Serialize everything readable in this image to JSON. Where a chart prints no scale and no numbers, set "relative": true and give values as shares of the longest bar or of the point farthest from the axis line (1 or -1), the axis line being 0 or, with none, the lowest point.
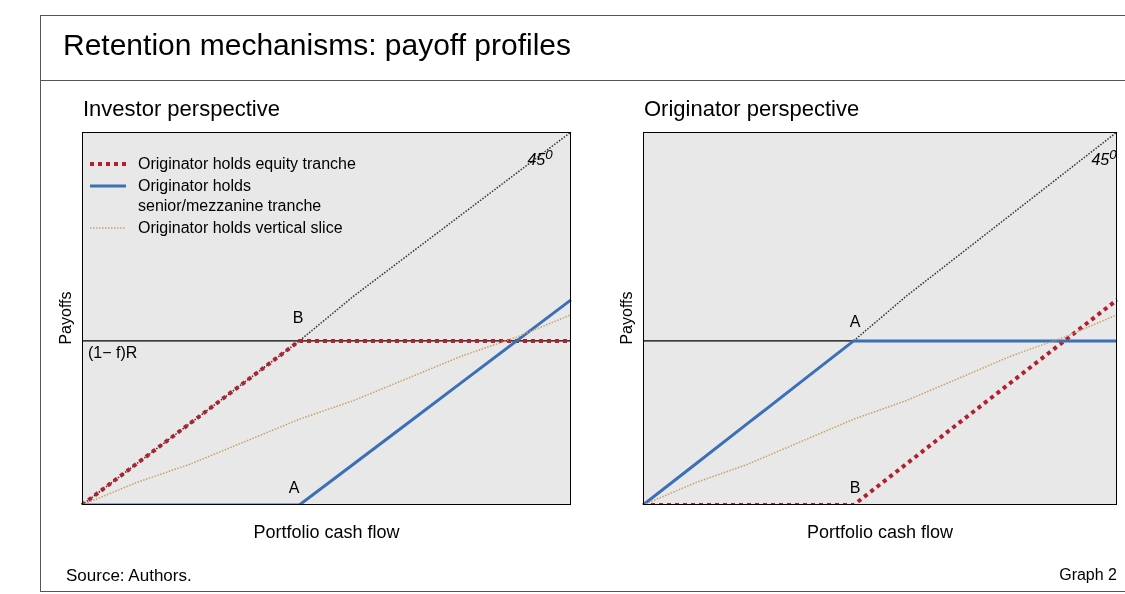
{
  "chart_data": [
    {
      "type": "line",
      "title": "Retention mechanisms: payoff profiles",
      "subtitle": "Investor perspective",
      "xlabel": "Portfolio cash flow",
      "ylabel": "Payoffs",
      "relative": true,
      "grid": false,
      "legend": "top left",
      "categories": [
        null,
        null,
        null,
        null,
        null,
        null,
        null,
        null,
        null,
        null
      ],
      "series": [
        {
          "color": "#333333",
          "line_style": "dotted",
          "values": [
            0,
            0.11,
            0.22,
            0.33,
            0.44,
            0.56,
            0.67,
            0.78,
            0.89,
            1
          ]
        },
        {
          "name": "Originator holds equity tranche",
          "color": "#b0202e",
          "line_style": "dotted",
          "values": [
            0,
            0.11,
            0.22,
            0.33,
            0.44,
            0.44,
            0.44,
            0.44,
            0.44,
            0.44
          ]
        },
        {
          "name": "Originator holds senior/mezzanine tranche",
          "color": "#3b6fb6",
          "line_style": "solid",
          "values": [
            0,
            0,
            0,
            0,
            0,
            0.11,
            0.22,
            0.33,
            0.44,
            0.55
          ]
        },
        {
          "name": "Originator holds vertical slice",
          "color": "#c9a064",
          "line_style": "dotted",
          "values": [
            0,
            0.06,
            0.11,
            0.17,
            0.23,
            0.28,
            0.34,
            0.4,
            0.45,
            0.51
          ]
        }
      ],
      "ref_lines": [
        {
          "axis": "y",
          "value": 0.44,
          "label": "(1− f)R",
          "color": "#000000"
        }
      ],
      "annotations": [
        "B",
        "A",
        "45$^{0}$",
        "Source: Authors."
      ]
    },
    {
      "type": "line",
      "subtitle": "Originator perspective",
      "xlabel": "Portfolio cash flow",
      "ylabel": "Payoffs",
      "relative": true,
      "grid": false,
      "categories": [
        null,
        null,
        null,
        null,
        null,
        null,
        null,
        null,
        null,
        null
      ],
      "series": [
        {
          "color": "#333333",
          "line_style": "dotted",
          "values": [
            null,
            null,
            null,
            null,
            0.44,
            0.56,
            0.67,
            0.78,
            0.89,
            1
          ]
        },
        {
          "color": "#b0202e",
          "line_style": "dotted",
          "values": [
            0,
            0,
            0,
            0,
            0,
            0.11,
            0.22,
            0.33,
            0.44,
            0.55
          ]
        },
        {
          "color": "#3b6fb6",
          "line_style": "solid",
          "values": [
            0,
            0.11,
            0.22,
            0.33,
            0.44,
            0.44,
            0.44,
            0.44,
            0.44,
            0.44
          ]
        },
        {
          "color": "#c9a064",
          "line_style": "dotted",
          "values": [
            0,
            0.06,
            0.11,
            0.17,
            0.23,
            0.28,
            0.34,
            0.4,
            0.45,
            0.51
          ]
        }
      ],
      "ref_lines": [
        {
          "axis": "y",
          "value": 0.44,
          "color": "#000000"
        }
      ],
      "annotations": [
        "A",
        "B",
        "45$^{0}$",
        "Graph 2"
      ]
    }
  ]
}
